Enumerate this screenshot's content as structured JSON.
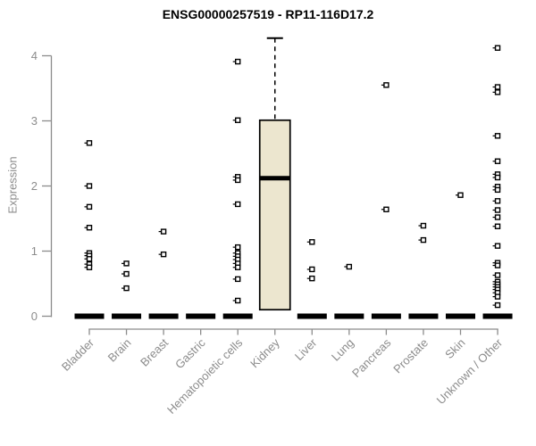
{
  "chart_data": {
    "type": "boxplot",
    "title": "ENSG00000257519 - RP11-116D17.2",
    "ylabel": "Expression",
    "xlabel": "",
    "ylim": [
      0,
      4.3
    ],
    "yticks": [
      0,
      1,
      2,
      3,
      4
    ],
    "grid": false,
    "legend": false,
    "colors": {
      "box_fill": "#ece6cf",
      "box_stroke": "#000000",
      "median": "#000000",
      "point": "#000000",
      "axis": "#8c8c8c"
    },
    "categories": [
      {
        "label": "Bladder",
        "median": 0,
        "points": [
          2.66,
          2.0,
          1.68,
          1.36,
          0.97,
          0.93,
          0.88,
          0.8,
          0.75
        ]
      },
      {
        "label": "Brain",
        "median": 0,
        "points": [
          0.81,
          0.65,
          0.43
        ]
      },
      {
        "label": "Breast",
        "median": 0,
        "points": [
          1.3,
          0.95
        ]
      },
      {
        "label": "Gastric",
        "median": 0,
        "points": []
      },
      {
        "label": "Hematopoietic cells",
        "median": 0,
        "points": [
          3.91,
          3.01,
          2.14,
          2.09,
          1.72,
          1.06,
          0.97,
          0.92,
          0.87,
          0.81,
          0.75,
          0.57,
          0.24
        ]
      },
      {
        "label": "Kidney",
        "box": {
          "q1": 0.1,
          "median": 2.12,
          "q3": 3.01,
          "whisker_high": 4.27
        },
        "points": []
      },
      {
        "label": "Liver",
        "median": 0,
        "points": [
          1.14,
          0.72,
          0.58
        ]
      },
      {
        "label": "Lung",
        "median": 0,
        "points": [
          0.76
        ]
      },
      {
        "label": "Pancreas",
        "median": 0,
        "points": [
          3.55,
          1.64
        ]
      },
      {
        "label": "Prostate",
        "median": 0,
        "points": [
          1.39,
          1.17
        ]
      },
      {
        "label": "Skin",
        "median": 0,
        "points": [
          1.86
        ]
      },
      {
        "label": "Unknown / Other",
        "median": 0,
        "points": [
          4.12,
          3.52,
          3.44,
          2.77,
          2.38,
          2.18,
          2.13,
          1.99,
          1.94,
          1.77,
          1.63,
          1.52,
          1.38,
          1.08,
          0.82,
          0.78,
          0.63,
          0.53,
          0.49,
          0.45,
          0.41,
          0.36,
          0.3,
          0.17
        ]
      }
    ]
  }
}
